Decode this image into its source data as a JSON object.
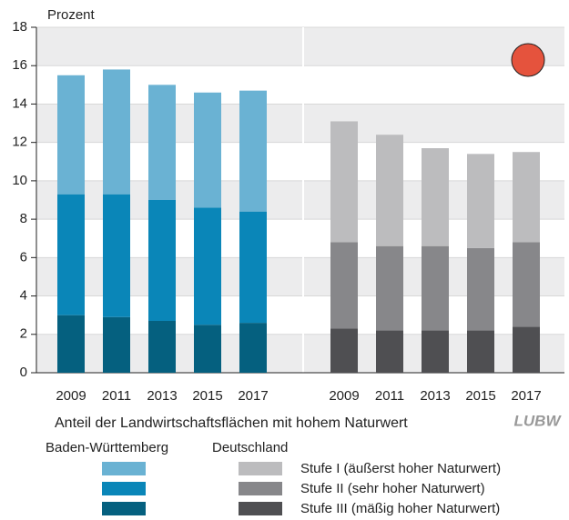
{
  "chart_data": {
    "type": "stacked-bar",
    "y_label": "Prozent",
    "title": "Anteil der Landwirtschaftsflächen mit hohem Naturwert",
    "logo": "LUBW",
    "ylim": [
      0,
      18
    ],
    "yticks": [
      0,
      2,
      4,
      6,
      8,
      10,
      12,
      14,
      16,
      18
    ],
    "grid": true,
    "groups": [
      {
        "name": "Baden-Württemberg",
        "categories": [
          "2009",
          "2011",
          "2013",
          "2015",
          "2017"
        ],
        "series": [
          {
            "color": "#6ab2d3",
            "values": [
              6.2,
              6.5,
              6.0,
              6.0,
              6.3
            ]
          },
          {
            "color": "#0a86b8",
            "values": [
              6.3,
              6.4,
              6.3,
              6.1,
              5.8
            ]
          },
          {
            "color": "#05607f",
            "values": [
              3.0,
              2.9,
              2.7,
              2.5,
              2.6
            ]
          }
        ]
      },
      {
        "name": "Deutschland",
        "categories": [
          "2009",
          "2011",
          "2013",
          "2015",
          "2017"
        ],
        "series": [
          {
            "name": "Stufe I (äußerst hoher Naturwert)",
            "color": "#bcbcbe",
            "values": [
              6.3,
              5.8,
              5.1,
              4.9,
              4.7
            ]
          },
          {
            "name": "Stufe II (sehr hoher Naturwert)",
            "color": "#87878a",
            "values": [
              4.5,
              4.4,
              4.4,
              4.3,
              4.4
            ]
          },
          {
            "name": "Stufe III (mäßig hoher Naturwert)",
            "color": "#4f4f52",
            "values": [
              2.3,
              2.2,
              2.2,
              2.2,
              2.4
            ]
          }
        ]
      }
    ]
  }
}
